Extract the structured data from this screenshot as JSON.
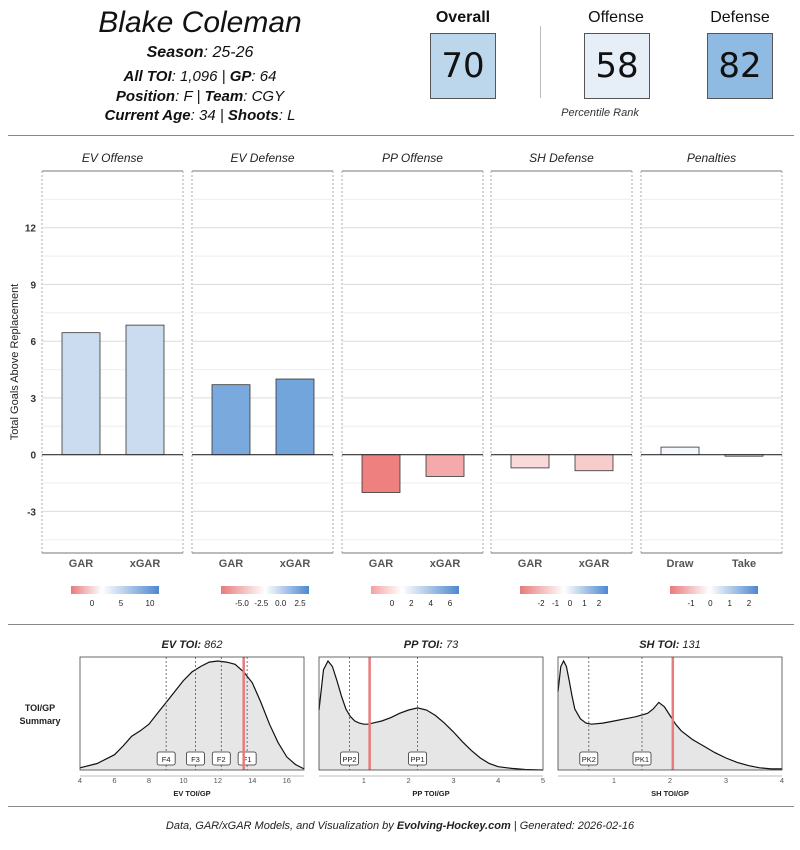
{
  "header": {
    "name": "Blake Coleman",
    "season_label": "Season",
    "season": "25-26",
    "toi_label": "All TOI",
    "toi": "1,096",
    "gp_label": "GP",
    "gp": "64",
    "position_label": "Position",
    "position": "F",
    "team_label": "Team",
    "team": "CGY",
    "age_label": "Current Age",
    "age": "34",
    "shoots_label": "Shoots",
    "shoots": "L"
  },
  "ranks": {
    "overall": {
      "label": "Overall",
      "value": "70",
      "color": "#bcd6ec"
    },
    "offense": {
      "label": "Offense",
      "value": "58",
      "color": "#e6eef8"
    },
    "defense": {
      "label": "Defense",
      "value": "82",
      "color": "#8fbbe3"
    },
    "caption": "Percentile Rank"
  },
  "chart_data": [
    {
      "type": "bar",
      "ylabel": "Total Goals Above Replacement",
      "ylim": [
        -5.2,
        15
      ],
      "yticks": [
        -3,
        0,
        3,
        6,
        9,
        12
      ],
      "panels": [
        {
          "title": "EV Offense",
          "categories": [
            "GAR",
            "xGAR"
          ],
          "values": [
            6.45,
            6.85
          ],
          "colors": [
            "#cbdcf1",
            "#cbdcf1"
          ],
          "legend": {
            "ticks": [
              "0",
              "5",
              "10"
            ]
          }
        },
        {
          "title": "EV Defense",
          "categories": [
            "GAR",
            "xGAR"
          ],
          "values": [
            3.7,
            4.0
          ],
          "colors": [
            "#7aa9dd",
            "#72a5dc"
          ],
          "legend": {
            "ticks": [
              "-5.0",
              "-2.5",
              "0.0",
              "2.5"
            ]
          }
        },
        {
          "title": "PP Offense",
          "categories": [
            "GAR",
            "xGAR"
          ],
          "values": [
            -2.0,
            -1.15
          ],
          "colors": [
            "#ee8080",
            "#f4aaaa"
          ],
          "legend": {
            "ticks": [
              "0",
              "2",
              "4",
              "6"
            ]
          }
        },
        {
          "title": "SH Defense",
          "categories": [
            "GAR",
            "xGAR"
          ],
          "values": [
            -0.7,
            -0.85
          ],
          "colors": [
            "#f9d9d9",
            "#f7cccc"
          ],
          "legend": {
            "ticks": [
              "-2",
              "-1",
              "0",
              "1",
              "2"
            ]
          }
        },
        {
          "title": "Penalties",
          "categories": [
            "Draw",
            "Take"
          ],
          "values": [
            0.4,
            -0.08
          ],
          "colors": [
            "#f4f7fc",
            "#f8f8f8"
          ],
          "legend": {
            "ticks": [
              "-1",
              "0",
              "1",
              "2"
            ]
          }
        }
      ]
    },
    {
      "type": "area",
      "row_label_1": "TOI/GP",
      "row_label_2": "Summary",
      "panels": [
        {
          "title_label": "EV TOI",
          "title_value": "862",
          "xlabel": "EV TOI/GP",
          "xlim": [
            4,
            17
          ],
          "xticks": [
            "4",
            "6",
            "8",
            "10",
            "12",
            "14",
            "16"
          ],
          "player_value": 13.5,
          "markers": [
            {
              "label": "F4",
              "x": 9.0
            },
            {
              "label": "F3",
              "x": 10.7
            },
            {
              "label": "F2",
              "x": 12.2
            },
            {
              "label": "F1",
              "x": 13.7
            }
          ],
          "density_x": [
            4,
            5,
            6,
            6.5,
            7,
            7.5,
            8,
            8.5,
            9,
            9.5,
            10,
            10.5,
            11,
            11.5,
            12,
            12.5,
            13,
            13.5,
            14,
            14.5,
            15,
            15.5,
            16,
            16.5,
            17
          ],
          "density_y": [
            0.02,
            0.06,
            0.14,
            0.22,
            0.31,
            0.36,
            0.42,
            0.52,
            0.62,
            0.72,
            0.82,
            0.9,
            0.95,
            0.99,
            1.0,
            0.99,
            0.97,
            0.9,
            0.8,
            0.62,
            0.42,
            0.25,
            0.12,
            0.05,
            0.01
          ]
        },
        {
          "title_label": "PP TOI",
          "title_value": "73",
          "xlabel": "PP TOI/GP",
          "xlim": [
            0,
            5
          ],
          "xticks": [
            "1",
            "2",
            "3",
            "4",
            "5"
          ],
          "player_value": 1.13,
          "markers": [
            {
              "label": "PP2",
              "x": 0.68
            },
            {
              "label": "PP1",
              "x": 2.2
            }
          ],
          "density_x": [
            0,
            0.1,
            0.2,
            0.3,
            0.4,
            0.5,
            0.6,
            0.7,
            0.8,
            0.9,
            1.0,
            1.1,
            1.2,
            1.4,
            1.6,
            1.8,
            2.0,
            2.2,
            2.4,
            2.6,
            2.8,
            3.0,
            3.2,
            3.4,
            3.6,
            3.8,
            4.0,
            4.3,
            4.6,
            5.0
          ],
          "density_y": [
            0.55,
            0.92,
            1.0,
            0.95,
            0.82,
            0.68,
            0.56,
            0.49,
            0.45,
            0.43,
            0.42,
            0.42,
            0.43,
            0.45,
            0.48,
            0.52,
            0.55,
            0.57,
            0.55,
            0.5,
            0.43,
            0.35,
            0.26,
            0.18,
            0.11,
            0.06,
            0.03,
            0.015,
            0.005,
            0.0
          ]
        },
        {
          "title_label": "SH TOI",
          "title_value": "131",
          "xlabel": "SH TOI/GP",
          "xlim": [
            0,
            4
          ],
          "xticks": [
            "1",
            "2",
            "3",
            "4"
          ],
          "player_value": 2.05,
          "markers": [
            {
              "label": "PK2",
              "x": 0.55
            },
            {
              "label": "PK1",
              "x": 1.5
            }
          ],
          "density_x": [
            0,
            0.05,
            0.1,
            0.15,
            0.2,
            0.25,
            0.3,
            0.4,
            0.5,
            0.6,
            0.8,
            1.0,
            1.2,
            1.4,
            1.6,
            1.7,
            1.8,
            1.9,
            2.0,
            2.1,
            2.2,
            2.4,
            2.6,
            2.8,
            3.0,
            3.2,
            3.4,
            3.6,
            3.8,
            4.0
          ],
          "density_y": [
            0.72,
            0.95,
            1.0,
            0.95,
            0.82,
            0.68,
            0.56,
            0.47,
            0.43,
            0.42,
            0.43,
            0.45,
            0.47,
            0.49,
            0.52,
            0.56,
            0.62,
            0.58,
            0.5,
            0.42,
            0.36,
            0.28,
            0.22,
            0.16,
            0.11,
            0.07,
            0.04,
            0.02,
            0.01,
            0.01
          ]
        }
      ]
    }
  ],
  "footer": {
    "prefix": "Data, GAR/xGAR Models, and Visualization by ",
    "site": "Evolving-Hockey.com",
    "suffix": " | Generated: 2026-02-16"
  }
}
